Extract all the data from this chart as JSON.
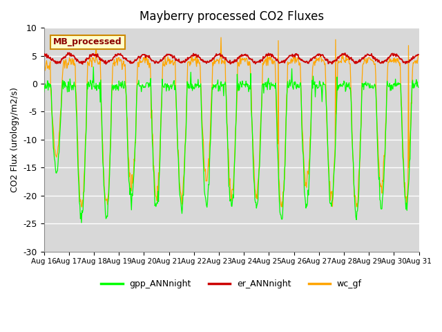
{
  "title": "Mayberry processed CO2 Fluxes",
  "ylabel": "CO2 Flux (urology/m2/s)",
  "ylim": [
    -30,
    10
  ],
  "yticks": [
    -30,
    -25,
    -20,
    -15,
    -10,
    -5,
    0,
    5,
    10
  ],
  "bg_color": "#d8d8d8",
  "colors": {
    "gpp": "#00ff00",
    "er": "#cc0000",
    "wc": "#ffa500"
  },
  "legend_labels": [
    "gpp_ANNnight",
    "er_ANNnight",
    "wc_gf"
  ],
  "inset_label": "MB_processed",
  "inset_bg": "#ffffcc",
  "inset_border": "#cc8800"
}
